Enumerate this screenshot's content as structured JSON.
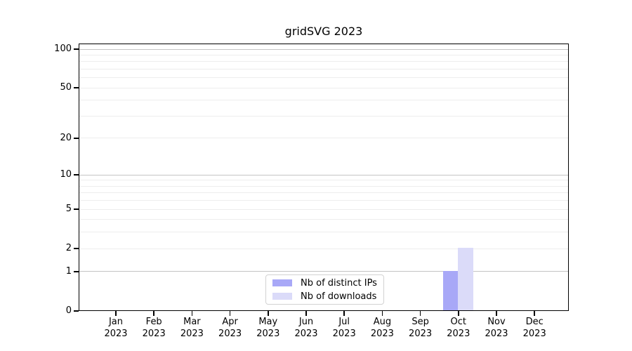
{
  "chart_data": {
    "type": "bar",
    "title": "gridSVG 2023",
    "categories": [
      {
        "month": "Jan",
        "year": "2023"
      },
      {
        "month": "Feb",
        "year": "2023"
      },
      {
        "month": "Mar",
        "year": "2023"
      },
      {
        "month": "Apr",
        "year": "2023"
      },
      {
        "month": "May",
        "year": "2023"
      },
      {
        "month": "Jun",
        "year": "2023"
      },
      {
        "month": "Jul",
        "year": "2023"
      },
      {
        "month": "Aug",
        "year": "2023"
      },
      {
        "month": "Sep",
        "year": "2023"
      },
      {
        "month": "Oct",
        "year": "2023"
      },
      {
        "month": "Nov",
        "year": "2023"
      },
      {
        "month": "Dec",
        "year": "2023"
      }
    ],
    "series": [
      {
        "name": "Nb of distinct IPs",
        "color": "#a8a8f7",
        "values": [
          0,
          0,
          0,
          0,
          0,
          0,
          0,
          0,
          0,
          1,
          0,
          0
        ]
      },
      {
        "name": "Nb of downloads",
        "color": "#dbdbf9",
        "values": [
          0,
          0,
          0,
          0,
          0,
          0,
          0,
          0,
          0,
          2,
          0,
          0
        ]
      }
    ],
    "y_axis": {
      "scale": "log1p",
      "ticks": [
        0,
        1,
        2,
        5,
        10,
        20,
        50,
        100
      ],
      "range": [
        0,
        113
      ]
    },
    "grid": {
      "major": [
        1,
        10,
        100
      ],
      "minor": [
        2,
        3,
        4,
        5,
        6,
        7,
        8,
        9,
        20,
        30,
        40,
        50,
        60,
        70,
        80,
        90
      ],
      "major_color": "#c4c4c4",
      "minor_color": "#ededed"
    },
    "legend": {
      "position": "bottom-center"
    }
  }
}
